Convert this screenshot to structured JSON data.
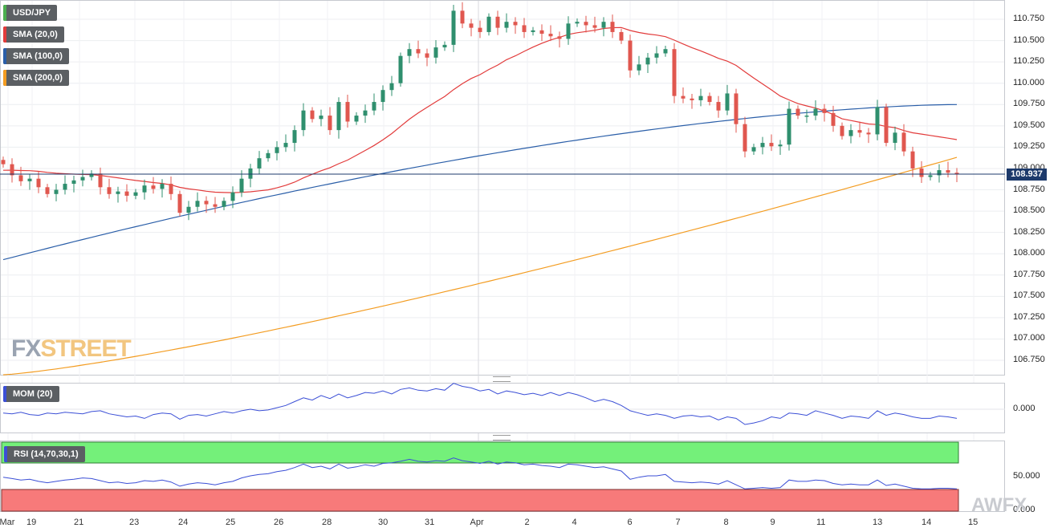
{
  "instrument_label": "USD/JPY",
  "legend": [
    {
      "label": "SMA (20,0)",
      "color": "#e23b3b"
    },
    {
      "label": "SMA (100,0)",
      "color": "#2a5ea8"
    },
    {
      "label": "SMA (200,0)",
      "color": "#f39c21"
    }
  ],
  "current_price_label": "108.937",
  "watermark": {
    "left": "FX",
    "right": "STREET"
  },
  "watermark_corner": "AWFX",
  "indicators": {
    "mom_label": "MOM (20)",
    "mom_tick": "0.000",
    "rsi_label": "RSI (14,70,30,1)",
    "rsi_ticks": [
      "50.000",
      "0.000"
    ]
  },
  "colors": {
    "up": "#2f8f6e",
    "down": "#e0574f",
    "sma20": "#e23b3b",
    "sma100": "#2a5ea8",
    "sma200": "#f39c21",
    "rsi_over": "#74f07a",
    "rsi_under": "#f77a7a",
    "line": "#3b4fd6"
  },
  "chart_data": {
    "type": "candlestick",
    "ylim": [
      106.6,
      111.0
    ],
    "y_ticks": [
      "110.750",
      "110.500",
      "110.250",
      "110.000",
      "109.750",
      "109.500",
      "109.250",
      "109.000",
      "108.750",
      "108.500",
      "108.250",
      "108.000",
      "107.750",
      "107.500",
      "107.250",
      "107.000",
      "106.750"
    ],
    "x_ticks": [
      "Mar",
      "19",
      "21",
      "23",
      "24",
      "25",
      "26",
      "28",
      "30",
      "31",
      "Apr",
      "2",
      "4",
      "6",
      "7",
      "8",
      "9",
      "11",
      "13",
      "14",
      "15"
    ],
    "current_price": 108.937,
    "closes": [
      109.05,
      108.92,
      108.85,
      108.88,
      108.78,
      108.7,
      108.75,
      108.82,
      108.86,
      108.9,
      108.94,
      108.78,
      108.7,
      108.73,
      108.68,
      108.72,
      108.8,
      108.76,
      108.82,
      108.7,
      108.48,
      108.55,
      108.62,
      108.58,
      108.55,
      108.62,
      108.72,
      108.88,
      109.0,
      109.12,
      109.18,
      109.25,
      109.3,
      109.45,
      109.68,
      109.58,
      109.62,
      109.45,
      109.78,
      109.55,
      109.62,
      109.68,
      109.78,
      109.92,
      110.0,
      110.32,
      110.4,
      110.35,
      110.3,
      110.42,
      110.45,
      110.85,
      110.7,
      110.65,
      110.6,
      110.78,
      110.65,
      110.72,
      110.68,
      110.6,
      110.62,
      110.58,
      110.55,
      110.52,
      110.7,
      110.72,
      110.68,
      110.65,
      110.72,
      110.6,
      110.5,
      110.15,
      110.22,
      110.3,
      110.35,
      110.4,
      109.85,
      109.82,
      109.8,
      109.85,
      109.78,
      109.68,
      109.88,
      109.52,
      109.2,
      109.25,
      109.3,
      109.26,
      109.28,
      109.7,
      109.62,
      109.62,
      109.7,
      109.65,
      109.5,
      109.38,
      109.45,
      109.42,
      109.4,
      109.72,
      109.3,
      109.42,
      109.2,
      109.0,
      108.9,
      108.92,
      108.98,
      108.95,
      108.94
    ]
  },
  "sma20": [
    [
      0,
      null
    ]
  ],
  "mom_values": [
    -0.05,
    -0.06,
    -0.04,
    -0.07,
    -0.08,
    -0.05,
    -0.06,
    -0.04,
    -0.05,
    -0.06,
    -0.03,
    -0.02,
    -0.06,
    -0.08,
    -0.1,
    -0.09,
    -0.12,
    -0.07,
    -0.05,
    -0.06,
    -0.13,
    -0.08,
    -0.07,
    -0.09,
    -0.06,
    -0.03,
    -0.05,
    -0.02,
    0.0,
    -0.02,
    -0.01,
    0.02,
    0.05,
    0.1,
    0.15,
    0.12,
    0.18,
    0.14,
    0.2,
    0.15,
    0.18,
    0.22,
    0.21,
    0.24,
    0.2,
    0.26,
    0.28,
    0.25,
    0.24,
    0.27,
    0.25,
    0.34,
    0.3,
    0.28,
    0.24,
    0.26,
    0.2,
    0.24,
    0.22,
    0.19,
    0.21,
    0.18,
    0.22,
    0.18,
    0.22,
    0.19,
    0.15,
    0.1,
    0.13,
    0.1,
    0.05,
    -0.02,
    -0.05,
    -0.08,
    -0.06,
    -0.08,
    -0.12,
    -0.09,
    -0.08,
    -0.1,
    -0.09,
    -0.14,
    -0.1,
    -0.12,
    -0.2,
    -0.18,
    -0.15,
    -0.1,
    -0.12,
    -0.05,
    -0.06,
    -0.08,
    -0.02,
    -0.05,
    -0.08,
    -0.12,
    -0.09,
    -0.1,
    -0.12,
    -0.02,
    -0.08,
    -0.05,
    -0.07,
    -0.1,
    -0.12,
    -0.12,
    -0.09,
    -0.1,
    -0.12
  ],
  "rsi_values": [
    48,
    46,
    44,
    45,
    42,
    40,
    42,
    44,
    45,
    47,
    46,
    43,
    40,
    41,
    39,
    40,
    43,
    42,
    44,
    41,
    35,
    38,
    40,
    39,
    37,
    40,
    42,
    47,
    50,
    52,
    53,
    56,
    58,
    62,
    67,
    62,
    64,
    60,
    67,
    61,
    63,
    66,
    64,
    68,
    69,
    71,
    74,
    71,
    70,
    72,
    71,
    76,
    72,
    70,
    68,
    71,
    67,
    70,
    69,
    66,
    67,
    65,
    64,
    62,
    67,
    66,
    64,
    62,
    63,
    60,
    57,
    45,
    48,
    50,
    50,
    52,
    42,
    41,
    40,
    41,
    40,
    38,
    43,
    37,
    31,
    32,
    33,
    32,
    33,
    44,
    42,
    42,
    44,
    43,
    39,
    37,
    38,
    37,
    37,
    44,
    36,
    38,
    35,
    32,
    31,
    31,
    32,
    32,
    31
  ]
}
